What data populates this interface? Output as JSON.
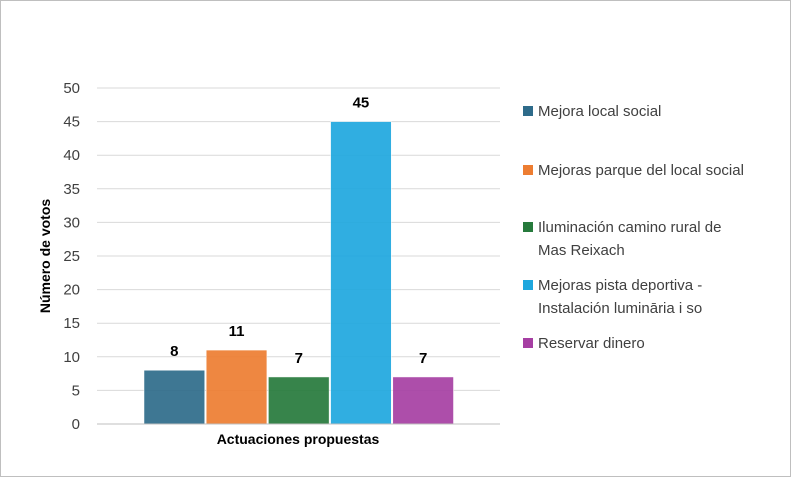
{
  "chart_data": {
    "type": "bar",
    "title": "",
    "xlabel": "Actuaciones propuestas",
    "ylabel": "Número de votos",
    "ylim": [
      0,
      50
    ],
    "yticks": [
      0,
      5,
      10,
      15,
      20,
      25,
      30,
      35,
      40,
      45,
      50
    ],
    "grid": true,
    "legend_position": "right",
    "series": [
      {
        "name": "Mejora local social",
        "value": 8,
        "color": "#2e6b8a",
        "legend_lines": [
          "Mejora local social"
        ]
      },
      {
        "name": "Mejoras parque del local social",
        "value": 11,
        "color": "#ed7d31",
        "legend_lines": [
          "Mejoras parque del local social"
        ]
      },
      {
        "name": "Iluminación camino rural de Mas Reixach",
        "value": 7,
        "color": "#267a3c",
        "legend_lines": [
          "Iluminación camino rural de",
          "Mas Reixach"
        ]
      },
      {
        "name": "Mejoras pista deportiva - Instalación lumināria i so",
        "value": 45,
        "color": "#1ea7de",
        "legend_lines": [
          "Mejoras pista deportiva -",
          "Instalación lumināria i so"
        ]
      },
      {
        "name": "Reservar dinero",
        "value": 7,
        "color": "#a63fa3",
        "legend_lines": [
          "Reservar dinero"
        ]
      }
    ]
  }
}
